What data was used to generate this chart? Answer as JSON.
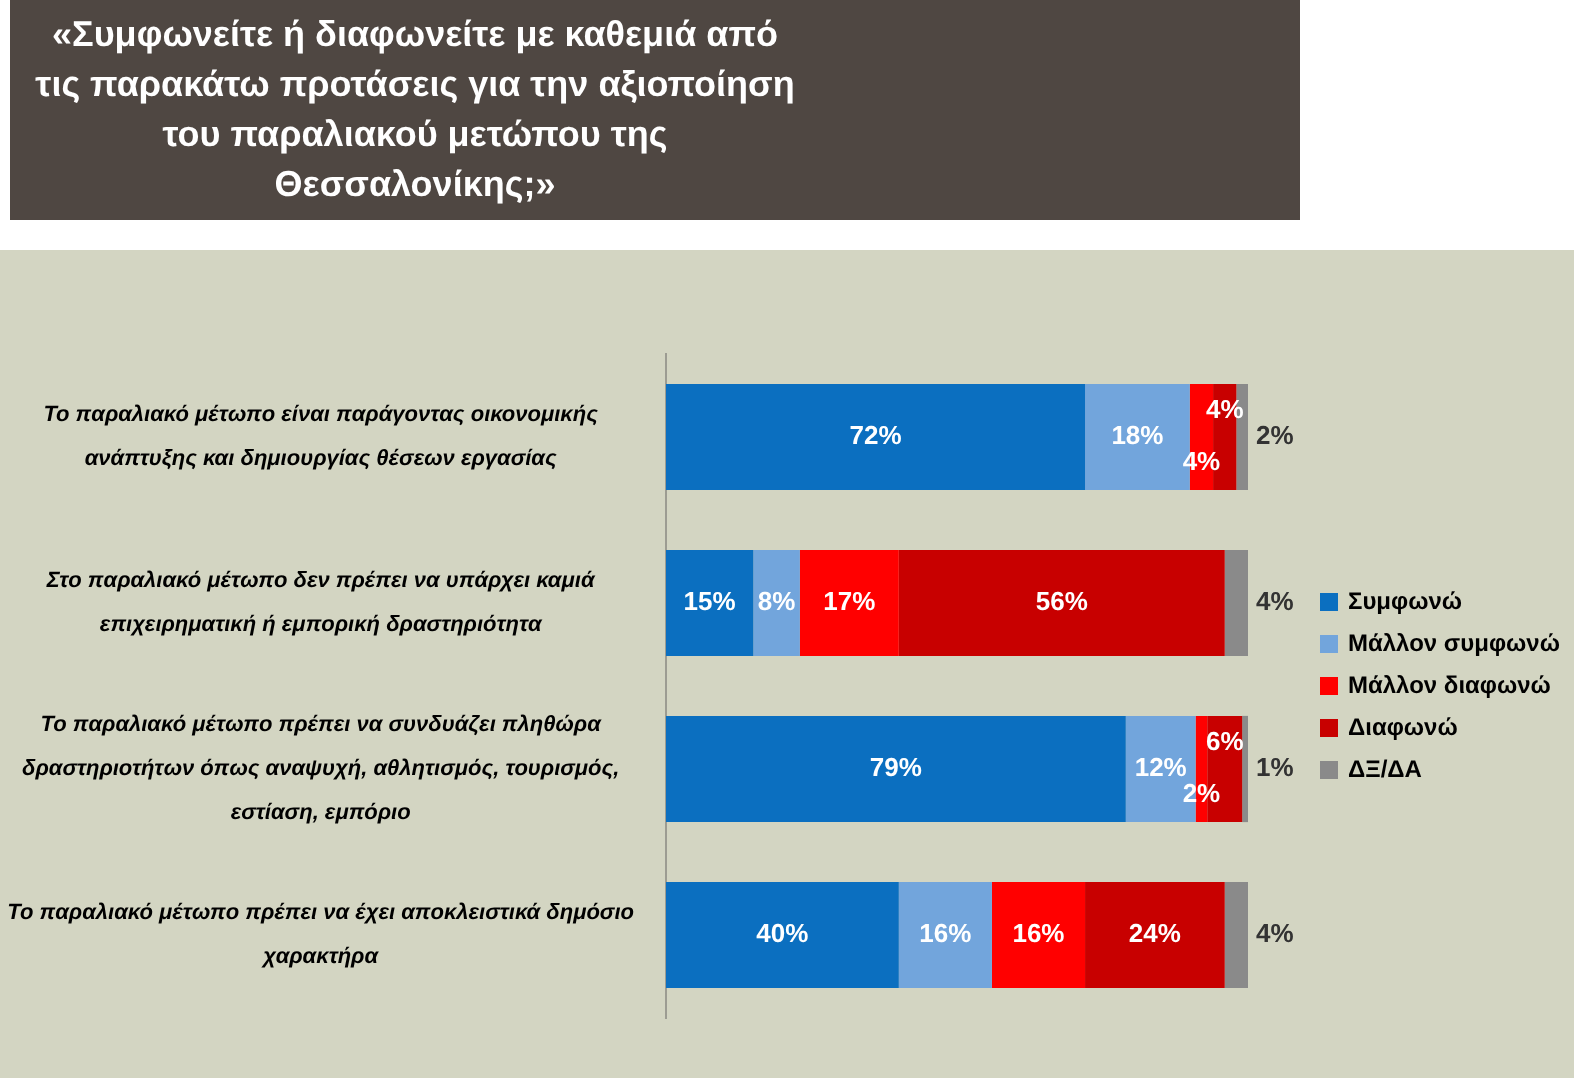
{
  "chart_data": {
    "type": "bar",
    "orientation": "horizontal",
    "stacked": true,
    "title": "«Συμφωνείτε ή διαφωνείτε με καθεμιά από τις παρακάτω προτάσεις για την αξιοποίηση του παραλιακού μετώπου της Θεσσαλονίκης;»",
    "categories": [
      "Το παραλιακό μέτωπο είναι παράγοντας οικονομικής ανάπτυξης και δημιουργίας θέσεων εργασίας",
      "Στο παραλιακό μέτωπο δεν πρέπει να υπάρχει καμιά επιχειρηματική ή εμπορική δραστηριότητα",
      "Το παραλιακό μέτωπο πρέπει να συνδυάζει πληθώρα δραστηριοτήτων όπως αναψυχή, αθλητισμός, τουρισμός, εστίαση, εμπόριο",
      "Το παραλιακό μέτωπο πρέπει να έχει αποκλειστικά δημόσιο χαρακτήρα"
    ],
    "series": [
      {
        "name": "Συμφωνώ",
        "color": "#0b6fc0",
        "values": [
          72,
          15,
          79,
          40
        ],
        "value_labels": [
          "72%",
          "15%",
          "79%",
          "40%"
        ]
      },
      {
        "name": "Μάλλον συμφωνώ",
        "color": "#72a5dc",
        "values": [
          18,
          8,
          12,
          16
        ],
        "value_labels": [
          "18%",
          "8%",
          "12%",
          "16%"
        ]
      },
      {
        "name": "Μάλλον διαφωνώ",
        "color": "#ff0000",
        "values": [
          4,
          17,
          2,
          16
        ],
        "value_labels": [
          "4%",
          "17%",
          "2%",
          "16%"
        ]
      },
      {
        "name": "Διαφωνώ",
        "color": "#c80000",
        "values": [
          4,
          56,
          6,
          24
        ],
        "value_labels": [
          "4%",
          "56%",
          "6%",
          "24%"
        ]
      },
      {
        "name": "ΔΞ/ΔΑ",
        "color": "#8a8a8a",
        "values": [
          2,
          4,
          1,
          4
        ],
        "value_labels": [
          "2%",
          "4%",
          "1%",
          "4%"
        ]
      }
    ],
    "tick_labels": "y",
    "legend": "right"
  }
}
